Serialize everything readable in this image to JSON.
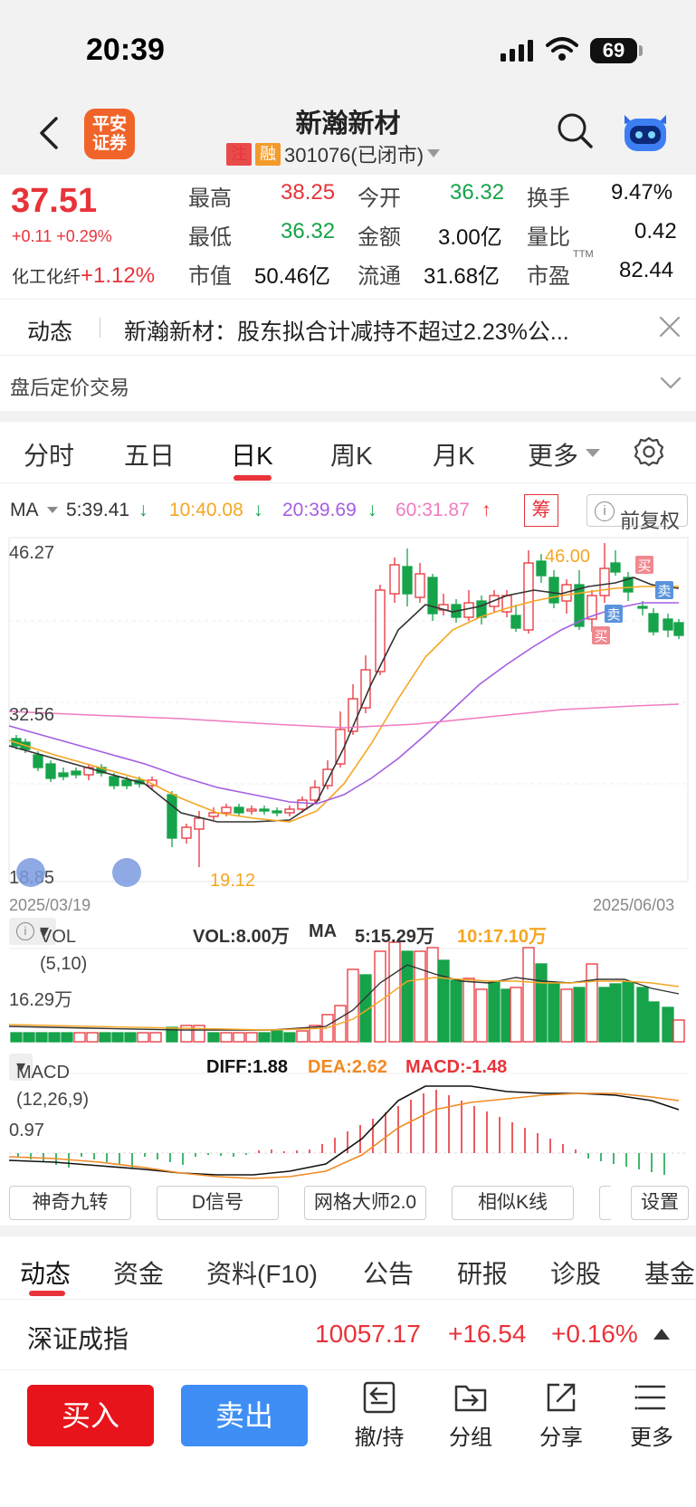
{
  "status": {
    "time": "20:39",
    "battery": "69"
  },
  "header": {
    "logo": "平安证券",
    "title": "新瀚新材",
    "tag1": "注",
    "tag2": "融",
    "code": "301076(已闭市)"
  },
  "quote": {
    "price": "37.51",
    "change": "+0.11 +0.29%",
    "sector_name": "化工化纤",
    "sector_change": "+1.12%",
    "rows": [
      [
        {
          "l": "最高",
          "v": "38.25"
        },
        {
          "l": "今开",
          "v": "36.32"
        },
        {
          "l": "换手",
          "v": "9.47%"
        }
      ],
      [
        {
          "l": "最低",
          "v": "36.32"
        },
        {
          "l": "金额",
          "v": "3.00亿"
        },
        {
          "l": "量比",
          "v": "0.42"
        }
      ],
      [
        {
          "l": "市值",
          "v": "50.46亿"
        },
        {
          "l": "流通",
          "v": "31.68亿"
        },
        {
          "l": "市盈",
          "v": "82.44"
        }
      ]
    ],
    "ttm": "TTM"
  },
  "news": {
    "label": "动态",
    "text": "新瀚新材：股东拟合计减持不超过2.23%公..."
  },
  "after_hours": {
    "label": "盘后定价交易"
  },
  "chart_tabs": [
    "分时",
    "五日",
    "日K",
    "周K",
    "月K",
    "更多"
  ],
  "ma": {
    "label": "MA",
    "ma5": "5:39.41",
    "ma10": "10:40.08",
    "ma20": "20:39.69",
    "ma60": "60:31.87",
    "chou": "筹",
    "fq": "前复权"
  },
  "kline": {
    "ymax": "46.27",
    "ymid": "32.56",
    "ymin": "18.85",
    "date_start": "2025/03/19",
    "date_end": "2025/06/03",
    "high_mark": "46.00",
    "low_mark": "19.12",
    "buy": "买",
    "sell": "卖"
  },
  "vol": {
    "box": "VOL (5,10)",
    "vol": "VOL:8.00万",
    "ma": "MA",
    "ma5": "5:15.29万",
    "ma10": "10:17.10万",
    "axis": "16.29万"
  },
  "macd": {
    "box": "MACD (12,26,9)",
    "diff": "DIFF:1.88",
    "dea": "DEA:2.62",
    "macd": "MACD:-1.48",
    "axis": "0.97"
  },
  "tools": [
    "神奇九转",
    "D信号",
    "网格大师2.0",
    "相似K线",
    "设置"
  ],
  "bottom_tabs": [
    "动态",
    "资金",
    "资料(F10)",
    "公告",
    "研报",
    "诊股",
    "基金"
  ],
  "index": {
    "name": "深证成指",
    "value": "10057.17",
    "change": "+16.54",
    "pct": "+0.16%"
  },
  "actions": {
    "buy": "买入",
    "sell": "卖出",
    "items": [
      "撤/持",
      "分组",
      "分享",
      "更多"
    ]
  },
  "colors": {
    "up": "#e8333a",
    "down": "#16a34a",
    "ma5": "#333333",
    "ma10": "#f5a623",
    "ma20": "#a45ee0",
    "ma60": "#f07cc0"
  }
}
